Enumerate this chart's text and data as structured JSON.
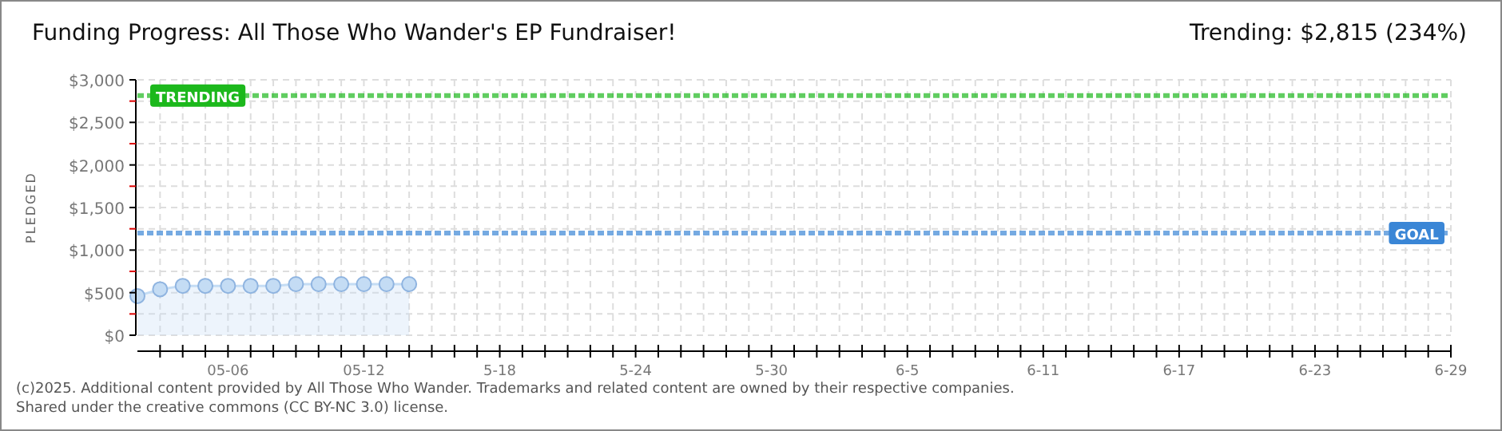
{
  "chart_data": {
    "type": "area",
    "title": "Funding Progress: All Those Who Wander's EP Fundraiser!",
    "subtitle": "Trending: $2,815 (234%)",
    "ylabel": "PLEDGED",
    "x": [
      "--05-02",
      "--05-03",
      "--05-04",
      "--05-05",
      "--05-06",
      "--05-07",
      "--05-08",
      "--05-09",
      "--05-10",
      "--05-11",
      "--05-12",
      "--05-13",
      "--05-14"
    ],
    "series": [
      {
        "color": "#c4dcf4",
        "values": [
          460,
          540,
          580,
          580,
          580,
          580,
          580,
          600,
          600,
          600,
          600,
          600,
          600
        ]
      }
    ],
    "xlim": [
      "--05-02",
      "--06-29"
    ],
    "xticks": [
      {
        "value": "--05-03",
        "label": null
      },
      {
        "value": "--05-04",
        "label": null
      },
      {
        "value": "--05-05",
        "label": null
      },
      {
        "value": "--05-06",
        "label": "05-06"
      },
      {
        "value": "--05-07",
        "label": null
      },
      {
        "value": "--05-08",
        "label": null
      },
      {
        "value": "--05-09",
        "label": null
      },
      {
        "value": "--05-10",
        "label": null
      },
      {
        "value": "--05-11",
        "label": null
      },
      {
        "value": "--05-12",
        "label": "05-12"
      },
      {
        "value": "--05-13",
        "label": null
      },
      {
        "value": "--05-14",
        "label": null
      },
      {
        "value": "--05-15",
        "label": null
      },
      {
        "value": "--05-16",
        "label": null
      },
      {
        "value": "--05-17",
        "label": null
      },
      {
        "value": "--05-18",
        "label": "5-18"
      },
      {
        "value": "--05-19",
        "label": null
      },
      {
        "value": "--05-20",
        "label": null
      },
      {
        "value": "--05-21",
        "label": null
      },
      {
        "value": "--05-22",
        "label": null
      },
      {
        "value": "--05-23",
        "label": null
      },
      {
        "value": "--05-24",
        "label": "5-24"
      },
      {
        "value": "--05-25",
        "label": null
      },
      {
        "value": "--05-26",
        "label": null
      },
      {
        "value": "--05-27",
        "label": null
      },
      {
        "value": "--05-28",
        "label": null
      },
      {
        "value": "--05-29",
        "label": null
      },
      {
        "value": "--05-30",
        "label": "5-30"
      },
      {
        "value": "--05-31",
        "label": null
      },
      {
        "value": "--06-01",
        "label": null
      },
      {
        "value": "--06-02",
        "label": null
      },
      {
        "value": "--06-03",
        "label": null
      },
      {
        "value": "--06-04",
        "label": null
      },
      {
        "value": "--06-05",
        "label": "6-5"
      },
      {
        "value": "--06-06",
        "label": null
      },
      {
        "value": "--06-07",
        "label": null
      },
      {
        "value": "--06-08",
        "label": null
      },
      {
        "value": "--06-09",
        "label": null
      },
      {
        "value": "--06-10",
        "label": null
      },
      {
        "value": "--06-11",
        "label": "6-11"
      },
      {
        "value": "--06-12",
        "label": null
      },
      {
        "value": "--06-13",
        "label": null
      },
      {
        "value": "--06-14",
        "label": null
      },
      {
        "value": "--06-15",
        "label": null
      },
      {
        "value": "--06-16",
        "label": null
      },
      {
        "value": "--06-17",
        "label": "6-17"
      },
      {
        "value": "--06-18",
        "label": null
      },
      {
        "value": "--06-19",
        "label": null
      },
      {
        "value": "--06-20",
        "label": null
      },
      {
        "value": "--06-21",
        "label": null
      },
      {
        "value": "--06-22",
        "label": null
      },
      {
        "value": "--06-23",
        "label": "6-23"
      },
      {
        "value": "--06-24",
        "label": null
      },
      {
        "value": "--06-25",
        "label": null
      },
      {
        "value": "--06-26",
        "label": null
      },
      {
        "value": "--06-27",
        "label": null
      },
      {
        "value": "--06-28",
        "label": null
      },
      {
        "value": "--06-29",
        "label": "6-29"
      }
    ],
    "ylim": [
      0,
      3000
    ],
    "yticks": [
      {
        "value": 0,
        "label": "$0"
      },
      {
        "value": 250,
        "label": null
      },
      {
        "value": 500,
        "label": "$500"
      },
      {
        "value": 750,
        "label": null
      },
      {
        "value": 1000,
        "label": "$1,000"
      },
      {
        "value": 1250,
        "label": null
      },
      {
        "value": 1500,
        "label": "$1,500"
      },
      {
        "value": 1750,
        "label": null
      },
      {
        "value": 2000,
        "label": "$2,000"
      },
      {
        "value": 2250,
        "label": null
      },
      {
        "value": 2500,
        "label": "$2,500"
      },
      {
        "value": 2750,
        "label": null
      },
      {
        "value": 3000,
        "label": "$3,000"
      }
    ],
    "grid": true,
    "marker": "circle",
    "ref_lines": [
      {
        "axis": "y",
        "value": 1200,
        "label": "GOAL",
        "color": "#3a86d6",
        "line_style": "dashed"
      },
      {
        "axis": "y",
        "value": 2815,
        "label": "TRENDING",
        "color": "#1cb81c",
        "line_style": "dashed"
      }
    ],
    "annotations": [
      "(c)2025. Additional content provided by All Those Who Wander. Trademarks and related content are owned by their respective companies.",
      "Shared under the creative commons (CC BY-NC 3.0) license."
    ]
  }
}
